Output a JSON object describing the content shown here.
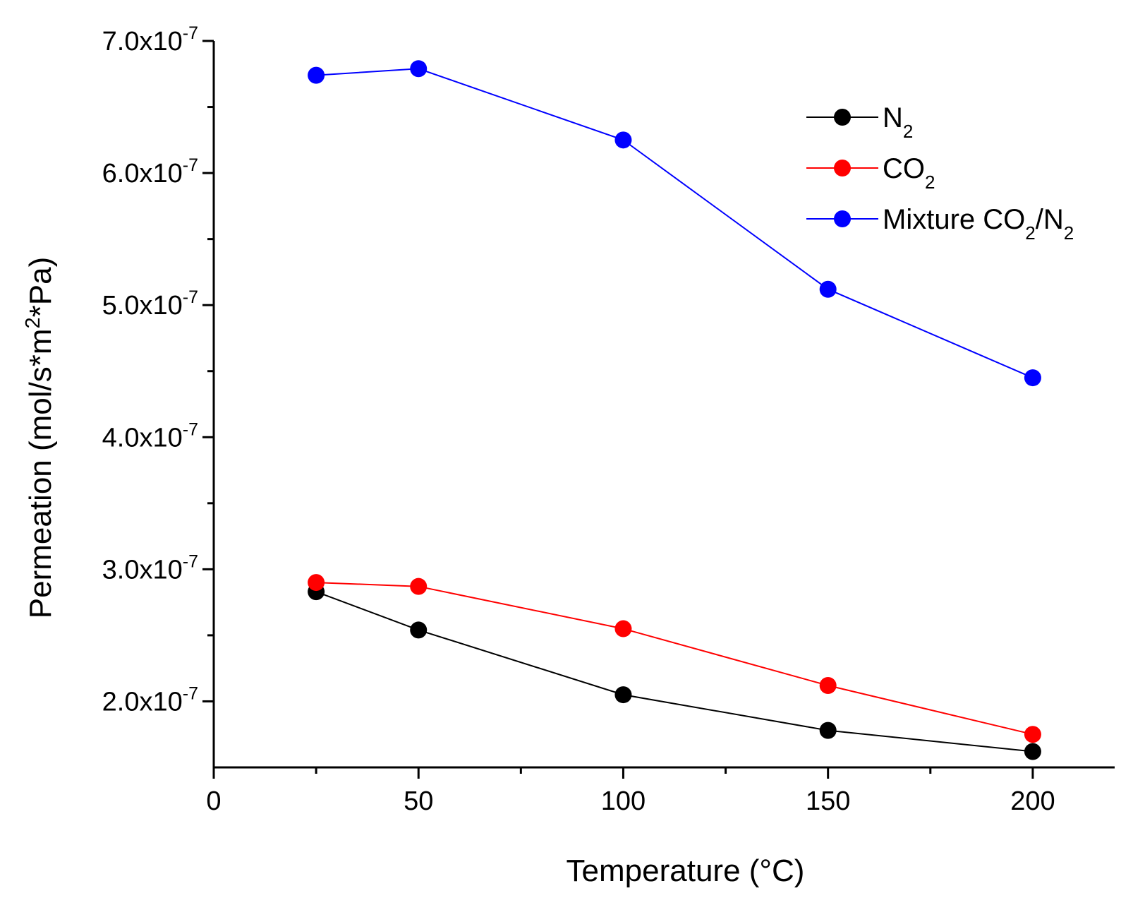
{
  "chart_data": {
    "type": "line",
    "xlabel": "Temperature (°C)",
    "ylabel": {
      "parts": [
        {
          "text": "Permeation (mol/s*m"
        },
        {
          "text": "2",
          "sup": true
        },
        {
          "text": "*Pa)"
        }
      ]
    },
    "xlim": [
      0,
      220
    ],
    "ylim": [
      1.5e-07,
      7e-07
    ],
    "x_ticks": [
      {
        "value": 0,
        "label": "0"
      },
      {
        "value": 50,
        "label": "50"
      },
      {
        "value": 100,
        "label": "100"
      },
      {
        "value": 150,
        "label": "150"
      },
      {
        "value": 200,
        "label": "200"
      }
    ],
    "x_minor_ticks": [
      25,
      75,
      125,
      175
    ],
    "y_ticks": [
      {
        "value": 2e-07,
        "mantissa": "2.0x10",
        "exponent": "-7"
      },
      {
        "value": 3e-07,
        "mantissa": "3.0x10",
        "exponent": "-7"
      },
      {
        "value": 4e-07,
        "mantissa": "4.0x10",
        "exponent": "-7"
      },
      {
        "value": 5e-07,
        "mantissa": "5.0x10",
        "exponent": "-7"
      },
      {
        "value": 6e-07,
        "mantissa": "6.0x10",
        "exponent": "-7"
      },
      {
        "value": 7e-07,
        "mantissa": "7.0x10",
        "exponent": "-7"
      }
    ],
    "y_minor_ticks": [
      2.5e-07,
      3.5e-07,
      4.5e-07,
      5.5e-07,
      6.5e-07
    ],
    "legend_position": "top-right",
    "grid": false,
    "x": [
      25,
      50,
      100,
      150,
      200
    ],
    "series": [
      {
        "name": "N2",
        "name_parts": [
          {
            "text": "N"
          },
          {
            "text": "2",
            "sub": true
          }
        ],
        "color": "#000000",
        "values": [
          2.83e-07,
          2.54e-07,
          2.05e-07,
          1.78e-07,
          1.62e-07
        ]
      },
      {
        "name": "CO2",
        "name_parts": [
          {
            "text": "CO"
          },
          {
            "text": "2",
            "sub": true
          }
        ],
        "color": "#ff0000",
        "values": [
          2.9e-07,
          2.87e-07,
          2.55e-07,
          2.12e-07,
          1.75e-07
        ]
      },
      {
        "name": "Mixture CO2/N2",
        "name_parts": [
          {
            "text": "Mixture CO"
          },
          {
            "text": "2",
            "sub": true
          },
          {
            "text": "/N"
          },
          {
            "text": "2",
            "sub": true
          }
        ],
        "color": "#0000ff",
        "values": [
          6.74e-07,
          6.79e-07,
          6.25e-07,
          5.12e-07,
          4.45e-07
        ]
      }
    ]
  }
}
